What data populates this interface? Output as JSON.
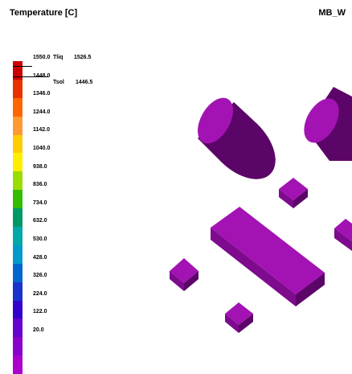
{
  "header": {
    "title": "Temperature [C]",
    "case_name": "MB_W"
  },
  "legend": {
    "colors": [
      "#cc0000",
      "#e83000",
      "#ff6600",
      "#ff9933",
      "#ffcc00",
      "#ffee00",
      "#99dd00",
      "#33bb00",
      "#009966",
      "#00a8a8",
      "#0099cc",
      "#0066cc",
      "#1a33cc",
      "#3300cc",
      "#6600cc",
      "#8800cc",
      "#aa00cc"
    ],
    "ticks": [
      "1550.0",
      "1448.0",
      "1346.0",
      "1244.0",
      "1142.0",
      "1040.0",
      "938.0",
      "836.0",
      "734.0",
      "632.0",
      "530.0",
      "428.0",
      "326.0",
      "224.0",
      "122.0",
      "20.0"
    ],
    "markers": [
      {
        "name": "Tliq",
        "value": "1526.5"
      },
      {
        "name": "Tsol",
        "value": "1446.5"
      }
    ]
  },
  "scene": {
    "part_color": "#a313b3",
    "part_shade": "#7e0a8e",
    "part_dark": "#5c0568"
  }
}
